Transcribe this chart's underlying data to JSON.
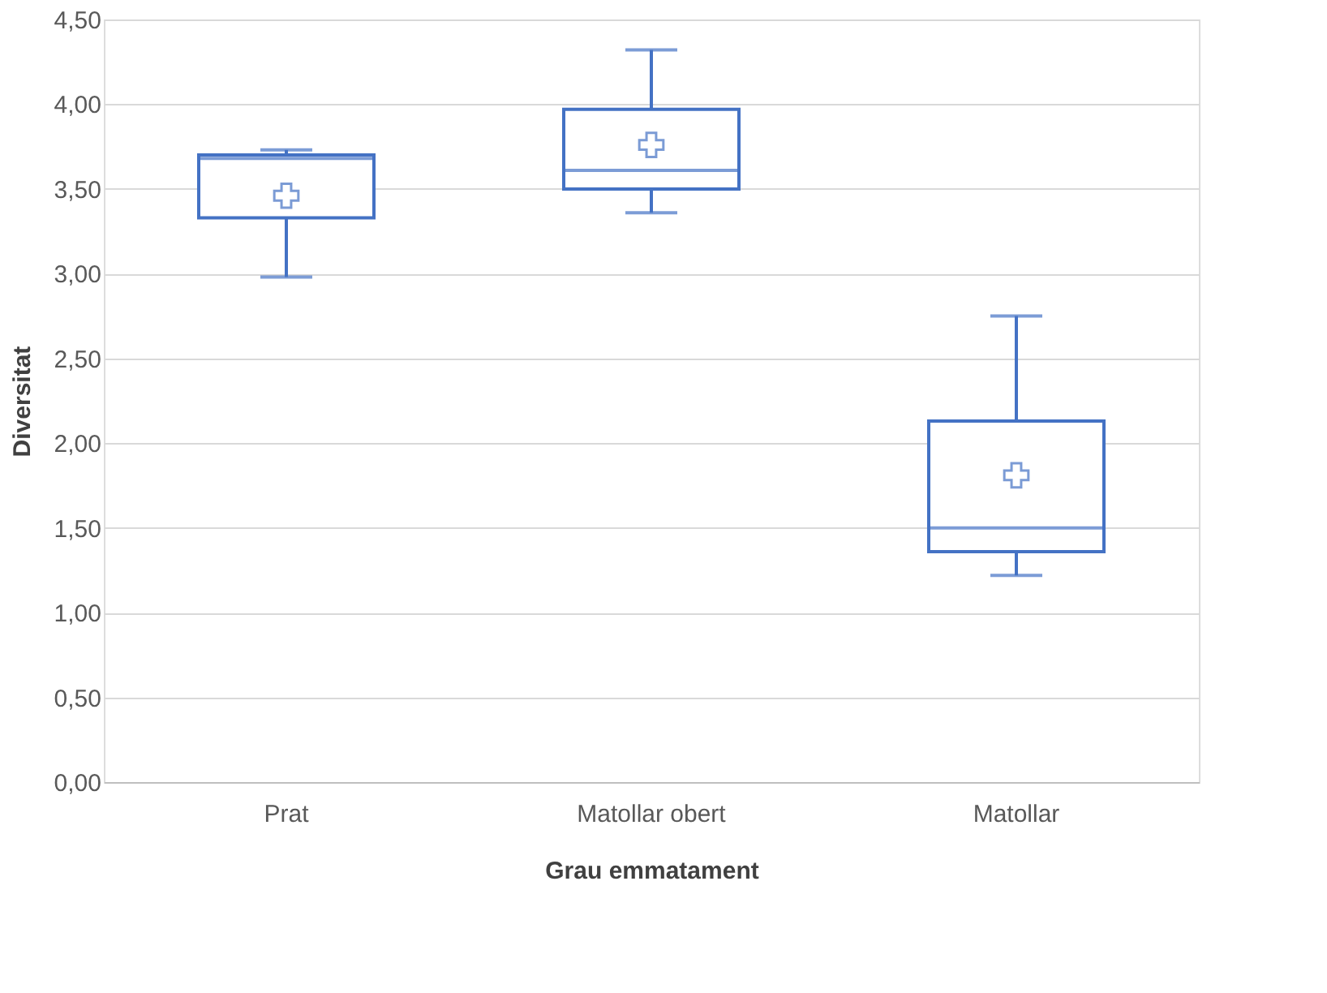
{
  "chart_data": {
    "type": "box",
    "xlabel": "Grau emmatament",
    "ylabel": "Diversitat",
    "categories": [
      "Prat",
      "Matollar obert",
      "Matollar"
    ],
    "boxes": [
      {
        "low": 2.98,
        "q1": 3.33,
        "median": 3.68,
        "q3": 3.7,
        "high": 3.73,
        "mean": 3.46
      },
      {
        "low": 3.36,
        "q1": 3.5,
        "median": 3.61,
        "q3": 3.97,
        "high": 4.32,
        "mean": 3.76
      },
      {
        "low": 1.22,
        "q1": 1.36,
        "median": 1.5,
        "q3": 2.13,
        "high": 2.75,
        "mean": 1.81
      }
    ],
    "color": "#4472c4",
    "ylim": [
      0,
      4.5
    ],
    "yticks": [
      {
        "value": 0,
        "label": "0,00"
      },
      {
        "value": 0.5,
        "label": "0,50"
      },
      {
        "value": 1,
        "label": "1,00"
      },
      {
        "value": 1.5,
        "label": "1,50"
      },
      {
        "value": 2,
        "label": "2,00"
      },
      {
        "value": 2.5,
        "label": "2,50"
      },
      {
        "value": 3,
        "label": "3,00"
      },
      {
        "value": 3.5,
        "label": "3,50"
      },
      {
        "value": 4,
        "label": "4,00"
      },
      {
        "value": 4.5,
        "label": "4,50"
      }
    ],
    "grid": "y",
    "marker": "cross"
  }
}
